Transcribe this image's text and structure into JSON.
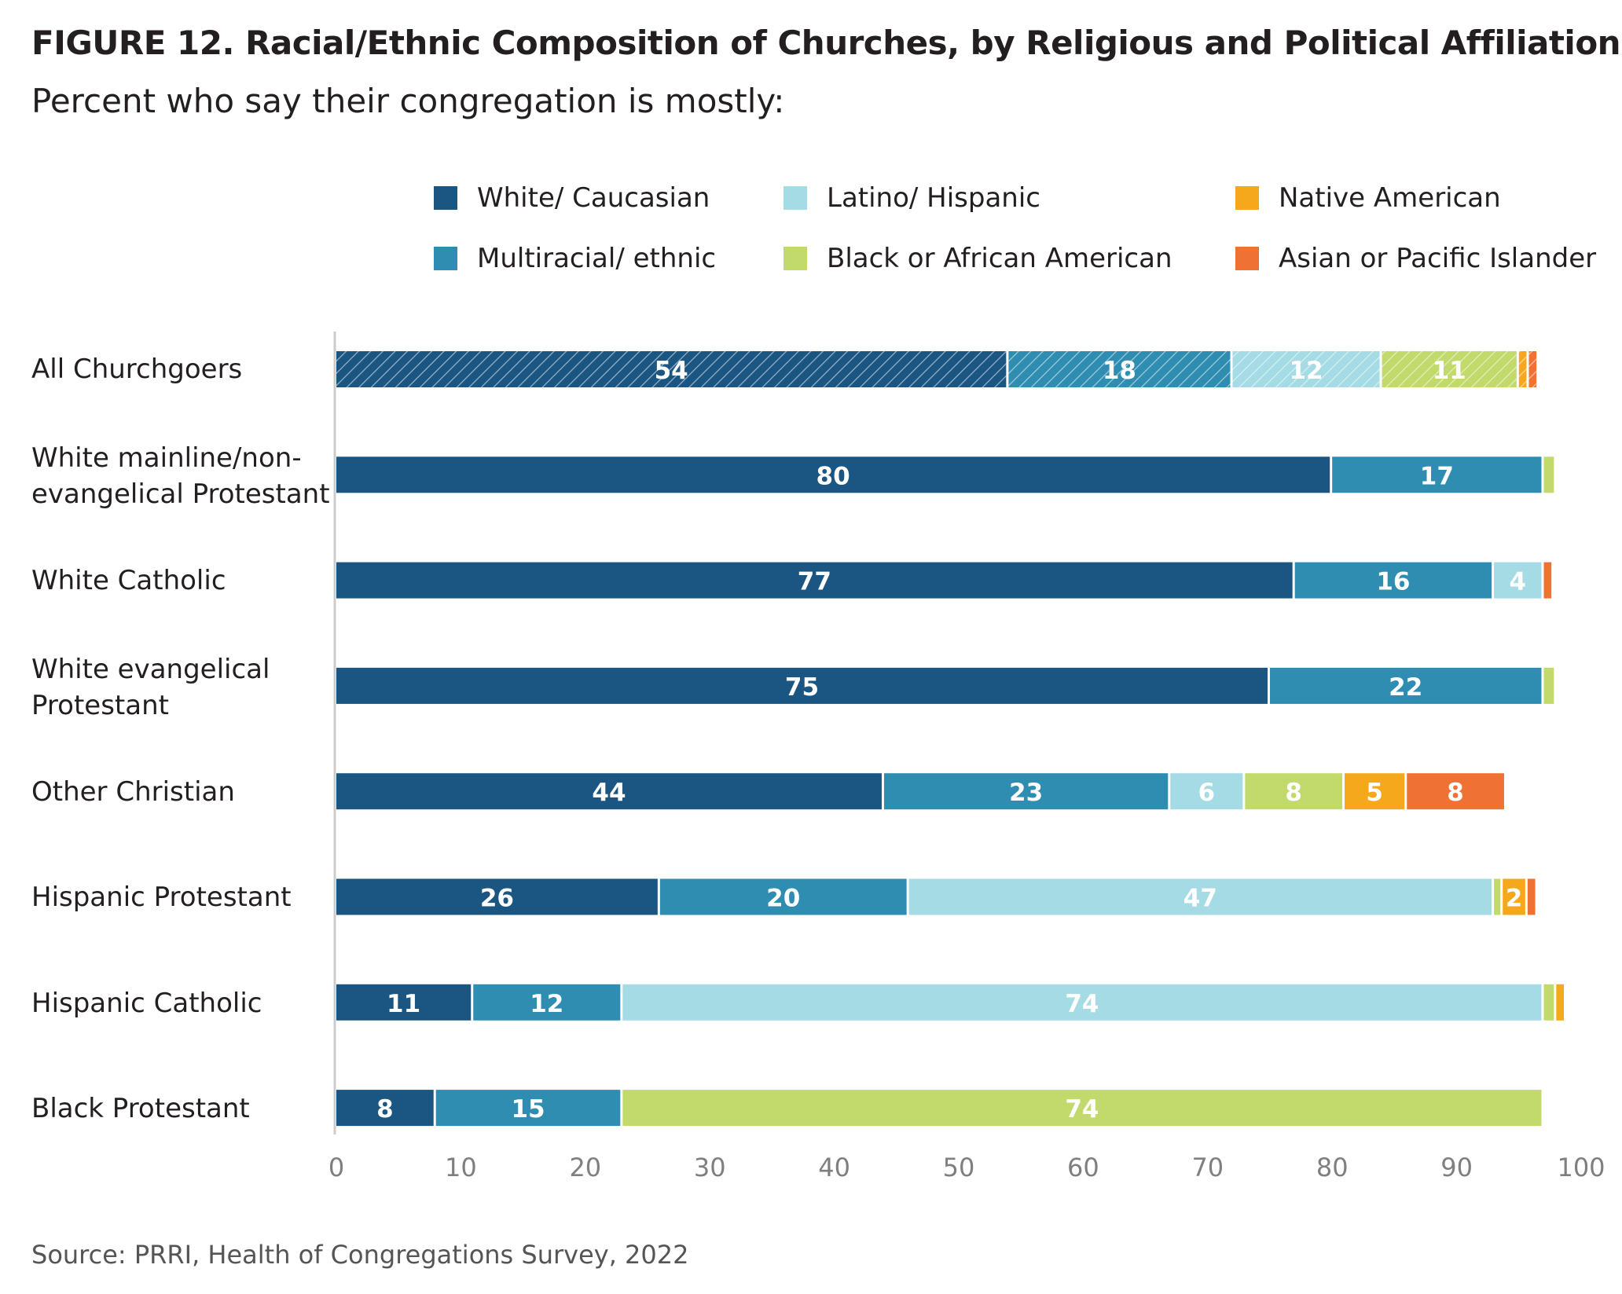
{
  "title": "FIGURE 12.  Racial/Ethnic Composition of Churches, by Religious and Political Affiliation",
  "subtitle": "Percent who say their congregation is mostly:",
  "source": "Source: PRRI, Health of Congregations Survey, 2022",
  "colors": {
    "white_caucasian": "#1b5582",
    "multiracial": "#2e8db0",
    "latino": "#a5dbe4",
    "black": "#c2d96b",
    "native_american": "#f6a81c",
    "asian": "#ef7234",
    "axis": "#cccccc",
    "tick_text": "#7f7f7f"
  },
  "legend": [
    {
      "label": "White/ Caucasian",
      "color_key": "white_caucasian"
    },
    {
      "label": "Latino/ Hispanic",
      "color_key": "latino"
    },
    {
      "label": "Native American",
      "color_key": "native_american"
    },
    {
      "label": "Multiracial/ ethnic",
      "color_key": "multiracial"
    },
    {
      "label": "Black or African American",
      "color_key": "black"
    },
    {
      "label": "Asian or Pacific Islander",
      "color_key": "asian"
    }
  ],
  "chart_data": {
    "type": "bar",
    "orientation": "horizontal",
    "stacked": true,
    "title": "FIGURE 12.  Racial/Ethnic Composition of Churches, by Religious and Political Affiliation",
    "subtitle": "Percent who say their congregation is mostly:",
    "categories": [
      "All Churchgoers",
      "White mainline/non-\nevangelical Protestant",
      "White Catholic",
      "White evangelical\nProtestant",
      "Other Christian",
      "Hispanic Protestant",
      "Hispanic Catholic",
      "Black Protestant"
    ],
    "series": [
      {
        "name": "White/ Caucasian",
        "color_key": "white_caucasian",
        "values": [
          54,
          80,
          77,
          75,
          44,
          26,
          11,
          8
        ],
        "labels": [
          "54",
          "80",
          "77",
          "75",
          "44",
          "26",
          "11",
          "8"
        ]
      },
      {
        "name": "Multiracial/ ethnic",
        "color_key": "multiracial",
        "values": [
          18,
          17,
          16,
          22,
          23,
          20,
          12,
          15
        ],
        "labels": [
          "18",
          "17",
          "16",
          "22",
          "23",
          "20",
          "12",
          "15"
        ]
      },
      {
        "name": "Latino/ Hispanic",
        "color_key": "latino",
        "values": [
          12,
          0,
          4,
          0,
          6,
          47,
          74,
          0
        ],
        "labels": [
          "12",
          "",
          "4",
          "",
          "6",
          "47",
          "74",
          ""
        ]
      },
      {
        "name": "Black or African American",
        "color_key": "black",
        "values": [
          11,
          1,
          0,
          1,
          8,
          0.7,
          1,
          74
        ],
        "labels": [
          "11",
          "",
          "",
          "",
          "8",
          "",
          "",
          "74"
        ]
      },
      {
        "name": "Native American",
        "color_key": "native_american",
        "values": [
          0.8,
          0,
          0,
          0,
          5,
          2,
          0.8,
          0
        ],
        "labels": [
          "",
          "",
          "",
          "",
          "5",
          "2",
          "",
          ""
        ]
      },
      {
        "name": "Asian or Pacific Islander",
        "color_key": "asian",
        "values": [
          0.8,
          0,
          0.8,
          0,
          8,
          0.8,
          0,
          0
        ],
        "labels": [
          "",
          "",
          "",
          "",
          "8",
          "",
          "",
          ""
        ]
      }
    ],
    "hatched_categories": [
      "All Churchgoers"
    ],
    "x_ticks": [
      "0",
      "10",
      "20",
      "30",
      "40",
      "50",
      "60",
      "70",
      "80",
      "90",
      "100"
    ],
    "xlim": [
      0,
      100
    ],
    "xlabel": "",
    "ylabel": "",
    "grid": false,
    "legend_position": "top"
  }
}
